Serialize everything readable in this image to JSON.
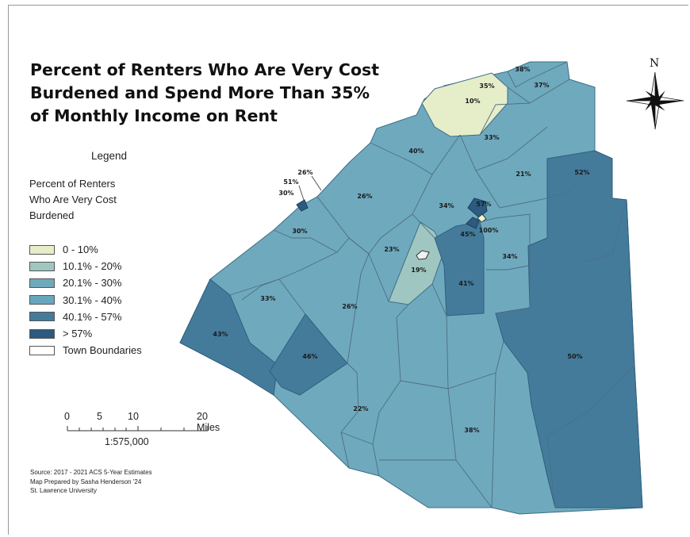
{
  "title": {
    "lines": [
      "Percent of Renters Who Are Very Cost",
      "Burdened and Spend More Than 35%",
      "of Monthly Income on Rent"
    ]
  },
  "legend": {
    "heading": "Legend",
    "subtitle_lines": [
      "Percent of Renters",
      "Who Are Very Cost",
      "Burdened"
    ],
    "items": [
      {
        "label": "0 - 10%",
        "color": "#e6edc9"
      },
      {
        "label": "10.1% - 20%",
        "color": "#9fc6c0"
      },
      {
        "label": "20.1% - 30%",
        "color": "#6fa9bd"
      },
      {
        "label": "30.1% - 40%",
        "color": "#68a6bd"
      },
      {
        "label": "40.1% - 57%",
        "color": "#447b9b"
      },
      {
        "label": "> 57%",
        "color": "#2c5a80"
      },
      {
        "label": "Town Boundaries",
        "color": "#ffffff"
      }
    ]
  },
  "scale_bar": {
    "ticks": [
      "0",
      "5",
      "10",
      "20 Miles"
    ],
    "ratio": "1:575,000"
  },
  "source": {
    "lines": [
      "Source: 2017 - 2021 ACS 5-Year Estimates",
      "Map Prepared by Sasha Henderson '24",
      "St. Lawrence University"
    ]
  },
  "north_arrow": {
    "label": "N"
  },
  "towns": [
    {
      "label": "38%",
      "value": 38
    },
    {
      "label": "35%",
      "value": 35
    },
    {
      "label": "37%",
      "value": 37
    },
    {
      "label": "10%",
      "value": 10
    },
    {
      "label": "33%",
      "value": 33
    },
    {
      "label": "40%",
      "value": 40
    },
    {
      "label": "21%",
      "value": 21
    },
    {
      "label": "52%",
      "value": 52
    },
    {
      "label": "26%",
      "value": 26
    },
    {
      "label": "51%",
      "value": 51
    },
    {
      "label": "30%",
      "value": 30
    },
    {
      "label": "26%",
      "value": 26
    },
    {
      "label": "34%",
      "value": 34
    },
    {
      "label": "57%",
      "value": 57
    },
    {
      "label": "45%",
      "value": 45
    },
    {
      "label": "100%",
      "value": 100
    },
    {
      "label": "30%",
      "value": 30
    },
    {
      "label": "23%",
      "value": 23
    },
    {
      "label": "34%",
      "value": 34
    },
    {
      "label": "19%",
      "value": 19
    },
    {
      "label": "41%",
      "value": 41
    },
    {
      "label": "33%",
      "value": 33
    },
    {
      "label": "26%",
      "value": 26
    },
    {
      "label": "43%",
      "value": 43
    },
    {
      "label": "46%",
      "value": 46
    },
    {
      "label": "50%",
      "value": 50
    },
    {
      "label": "22%",
      "value": 22
    },
    {
      "label": "38%",
      "value": 38
    }
  ]
}
